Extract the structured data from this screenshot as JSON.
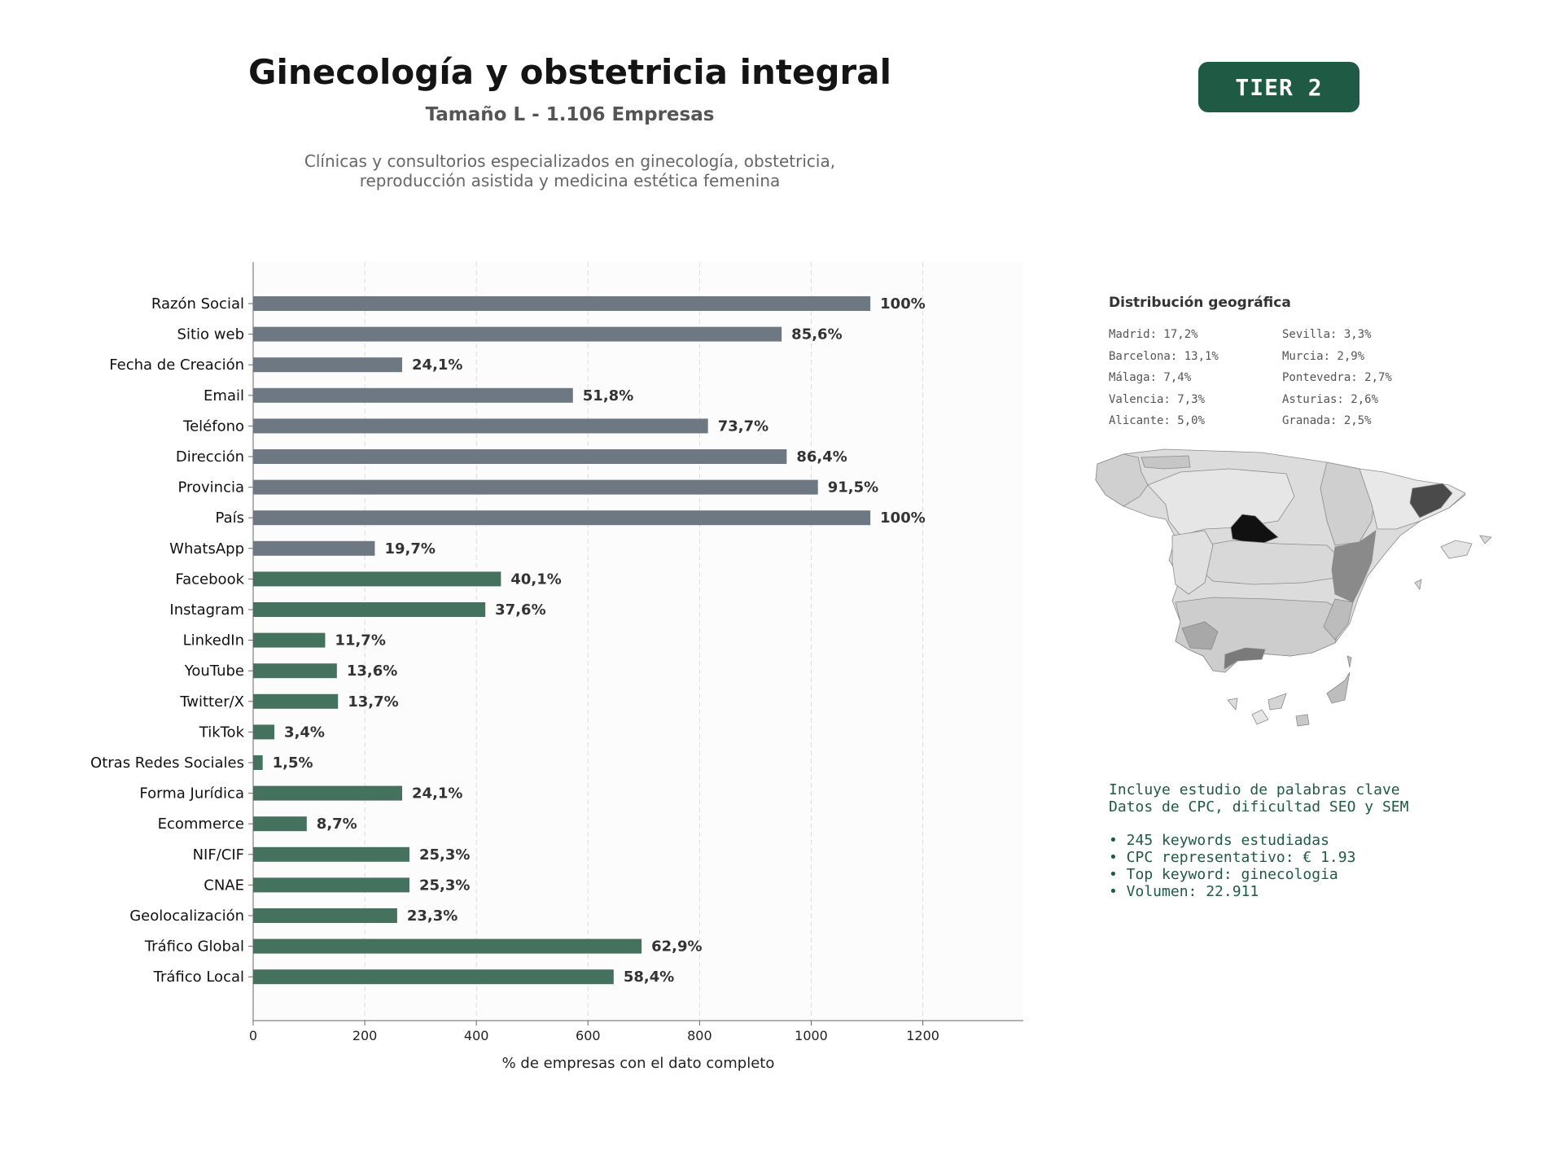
{
  "header": {
    "title": "Ginecología y obstetricia integral",
    "subtitle": "Tamaño L - 1.106 Empresas",
    "description_line1": "Clínicas y consultorios especializados en ginecología, obstetricia,",
    "description_line2": "reproducción asistida y medicina estética femenina",
    "tier": "TIER 2"
  },
  "chart_data": {
    "type": "bar",
    "orientation": "horizontal",
    "xlabel": "% de empresas con el dato completo",
    "xlim": [
      0,
      1380
    ],
    "xticks": [
      0,
      200,
      400,
      600,
      800,
      1000,
      1200
    ],
    "grid": "vertical dashed",
    "colors": {
      "base": "#6d7882",
      "extra": "#45725f"
    },
    "categories": [
      "Razón Social",
      "Sitio web",
      "Fecha de Creación",
      "Email",
      "Teléfono",
      "Dirección",
      "Provincia",
      "País",
      "WhatsApp",
      "Facebook",
      "Instagram",
      "LinkedIn",
      "YouTube",
      "Twitter/X",
      "TikTok",
      "Otras Redes Sociales",
      "Forma Jurídica",
      "Ecommerce",
      "NIF/CIF",
      "CNAE",
      "Geolocalización",
      "Tráfico Global",
      "Tráfico Local"
    ],
    "values": [
      1106,
      947,
      267,
      573,
      815,
      956,
      1012,
      1106,
      218,
      444,
      416,
      129,
      150,
      152,
      38,
      17,
      267,
      96,
      280,
      280,
      258,
      696,
      646
    ],
    "labels": [
      "100%",
      "85,6%",
      "24,1%",
      "51,8%",
      "73,7%",
      "86,4%",
      "91,5%",
      "100%",
      "19,7%",
      "40,1%",
      "37,6%",
      "11,7%",
      "13,6%",
      "13,7%",
      "3,4%",
      "1,5%",
      "24,1%",
      "8,7%",
      "25,3%",
      "25,3%",
      "23,3%",
      "62,9%",
      "58,4%"
    ],
    "group": [
      "base",
      "base",
      "base",
      "base",
      "base",
      "base",
      "base",
      "base",
      "base",
      "extra",
      "extra",
      "extra",
      "extra",
      "extra",
      "extra",
      "extra",
      "extra",
      "extra",
      "extra",
      "extra",
      "extra",
      "extra",
      "extra"
    ]
  },
  "geo": {
    "title": "Distribución geográfica",
    "left": [
      "Madrid: 17,2%",
      "Barcelona: 13,1%",
      "Málaga: 7,4%",
      "Valencia: 7,3%",
      "Alicante: 5,0%"
    ],
    "right": [
      "Sevilla: 3,3%",
      "Murcia: 2,9%",
      "Pontevedra: 2,7%",
      "Asturias: 2,6%",
      "Granada: 2,5%"
    ]
  },
  "keywords": {
    "line1": "Incluye estudio de palabras clave",
    "line2": "Datos de CPC, dificultad SEO y SEM",
    "bullets": [
      "• 245 keywords estudiadas",
      "• CPC representativo: € 1.93",
      "• Top keyword: ginecologia",
      "• Volumen: 22.911"
    ]
  }
}
